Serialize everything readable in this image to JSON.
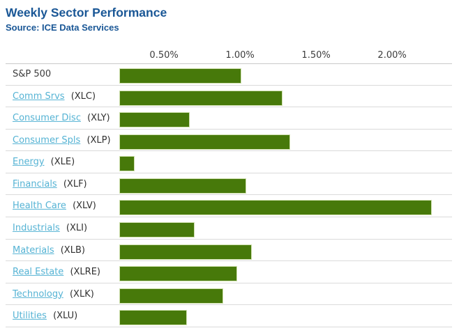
{
  "header": {
    "title": "Weekly Sector Performance",
    "source": "Source: ICE Data Services"
  },
  "colors": {
    "title_blue": "#1a5796",
    "link_blue": "#55b3d4",
    "bar_green": "#47790a",
    "bar_border": "#cfe0ae",
    "axis_text": "#3c3c3c",
    "separator_gray": "#dadada"
  },
  "chart_data": {
    "type": "bar",
    "orientation": "horizontal",
    "title": "Weekly Sector Performance",
    "subtitle": "Source: ICE Data Services",
    "xlabel": "",
    "ylabel": "",
    "unit": "%",
    "x_axis": {
      "position": "top",
      "grid": false,
      "xlim": [
        0.206,
        2.44
      ],
      "tick_values": [
        0.5,
        1.0,
        1.5,
        2.0
      ],
      "tick_labels": [
        "0.50%",
        "1.00%",
        "1.50%",
        "2.00%"
      ]
    },
    "categories": [
      "S&P 500",
      "Comm Srvs",
      "Consumer Disc",
      "Consumer Spls",
      "Energy",
      "Financials",
      "Health Care",
      "Industrials",
      "Materials",
      "Real Estate",
      "Technology",
      "Utilities"
    ],
    "values": [
      1.0,
      1.27,
      0.66,
      1.32,
      0.3,
      1.03,
      2.25,
      0.69,
      1.07,
      0.97,
      0.88,
      0.64
    ],
    "rows": [
      {
        "label": "S&P 500",
        "ticker": "",
        "link": false,
        "value": 1.0
      },
      {
        "label": "Comm Srvs",
        "ticker": "(XLC)",
        "link": true,
        "value": 1.27
      },
      {
        "label": "Consumer Disc",
        "ticker": "(XLY)",
        "link": true,
        "value": 0.66
      },
      {
        "label": "Consumer Spls",
        "ticker": "(XLP)",
        "link": true,
        "value": 1.32
      },
      {
        "label": "Energy",
        "ticker": "(XLE)",
        "link": true,
        "value": 0.3
      },
      {
        "label": "Financials",
        "ticker": "(XLF)",
        "link": true,
        "value": 1.03
      },
      {
        "label": "Health Care",
        "ticker": "(XLV)",
        "link": true,
        "value": 2.25
      },
      {
        "label": "Industrials",
        "ticker": "(XLI)",
        "link": true,
        "value": 0.69
      },
      {
        "label": "Materials",
        "ticker": "(XLB)",
        "link": true,
        "value": 1.07
      },
      {
        "label": "Real Estate",
        "ticker": "(XLRE)",
        "link": true,
        "value": 0.97
      },
      {
        "label": "Technology",
        "ticker": "(XLK)",
        "link": true,
        "value": 0.88
      },
      {
        "label": "Utilities",
        "ticker": "(XLU)",
        "link": true,
        "value": 0.64
      }
    ]
  }
}
